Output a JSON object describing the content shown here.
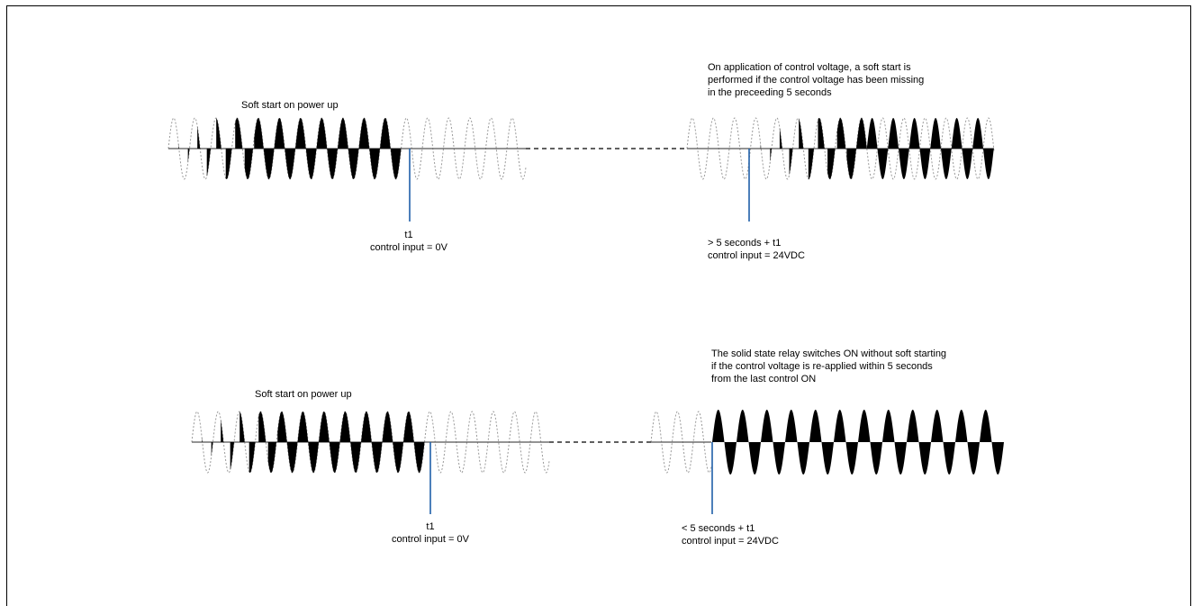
{
  "panel_top": {
    "left_title": "Soft start on power up",
    "note_lines": [
      "On application of control voltage, a soft start is",
      "performed if the control voltage has been missing",
      "in the preceeding 5 seconds"
    ],
    "marker_left": {
      "line1": "t1",
      "line2": "control input = 0V"
    },
    "marker_right": {
      "line1": "> 5 seconds + t1",
      "line2": "control input = 24VDC"
    }
  },
  "panel_bottom": {
    "left_title": "Soft start on power up",
    "note_lines": [
      "The solid state relay switches ON without soft starting",
      "if the control voltage is re-applied within 5 seconds",
      "from the last control ON"
    ],
    "marker_left": {
      "line1": "t1",
      "line2": "control input = 0V"
    },
    "marker_right": {
      "line1": "< 5 seconds + t1",
      "line2": "control input = 24VDC"
    }
  },
  "colors": {
    "marker": "#1f5fa8",
    "fill": "#000000",
    "dashed_wave": "#9a9a9a",
    "axis": "#555555"
  }
}
